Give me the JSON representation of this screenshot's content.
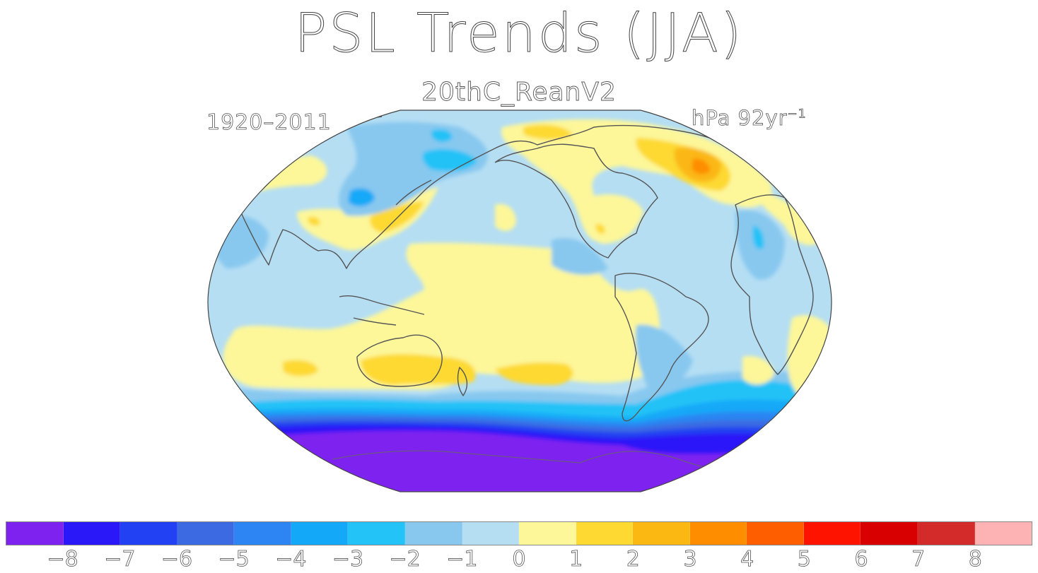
{
  "title": "PSL Trends (JJA)",
  "subtitle": "20thC_ReanV2",
  "period": "1920–2011",
  "units": {
    "base": "hPa 92yr",
    "exponent": "−1"
  },
  "colorbar": {
    "colors": [
      "#7e22f0",
      "#2b18f8",
      "#2241f2",
      "#3b6ae2",
      "#2c85f2",
      "#14a9f8",
      "#23c2f7",
      "#88c8ef",
      "#b5def3",
      "#fdf79a",
      "#fdd932",
      "#fbb712",
      "#fe8e00",
      "#fe5d00",
      "#fe1300",
      "#d80000",
      "#d32a2a",
      "#fdb3b3"
    ],
    "tick_labels": [
      "−8",
      "−7",
      "−6",
      "−5",
      "−4",
      "−3",
      "−2",
      "−1",
      "0",
      "1",
      "2",
      "3",
      "4",
      "5",
      "6",
      "7",
      "8"
    ]
  },
  "map": {
    "projection": "Robinson-like (elliptical)",
    "colors": {
      "background": "#b5def3",
      "weak_positive": "#fdf79a",
      "moderate_positive": "#fdd932",
      "strong_positive": "#fbb712",
      "max_positive": "#fe8e00",
      "weak_negative": "#88c8ef",
      "moderate_negative": "#23c2f7",
      "strong_negative": "#14a9f8",
      "deep_negative": "#2c85f2",
      "very_deep_negative": "#2241f2",
      "antarctic": "#7e22f0",
      "coastline": "#555555"
    }
  }
}
